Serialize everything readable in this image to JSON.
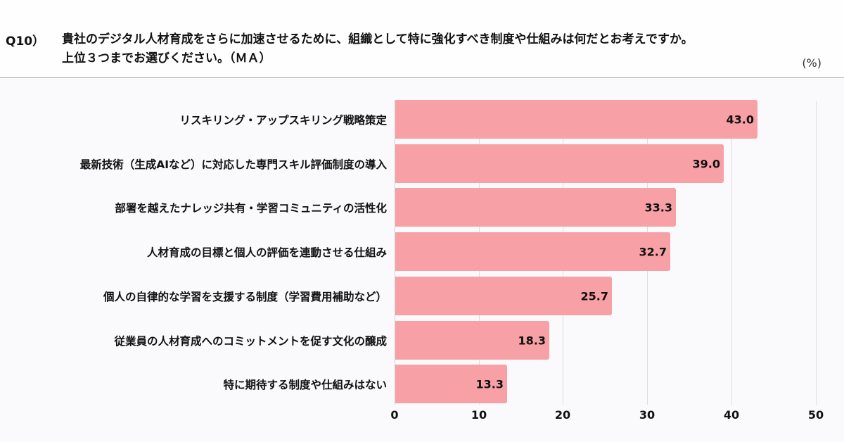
{
  "header": {
    "question_number": "Q10）",
    "question_line1": "貴社のデジタル人材育成をさらに加速させるために、組織として特に強化すべき制度や仕組みは何だとお考えですか。",
    "question_line2": "上位３つまでお選びください。（ＭＡ）",
    "unit": "(%)"
  },
  "colors": {
    "bar": "#f7a0a6",
    "divider": "#a9a9a9",
    "grid": "#dddcdf"
  },
  "chart_data": {
    "type": "bar",
    "orientation": "horizontal",
    "title": "貴社のデジタル人材育成をさらに加速させるために、組織として特に強化すべき制度や仕組みは何だとお考えですか。上位３つまでお選びください。（ＭＡ）",
    "xlabel": "(%)",
    "ylabel": "",
    "xlim": [
      0,
      50
    ],
    "xticks": [
      "0",
      "10",
      "20",
      "30",
      "40",
      "50"
    ],
    "grid": true,
    "legend": null,
    "categories": [
      "リスキリング・アップスキリング戦略策定",
      "最新技術（生成AIなど）に対応した専門スキル評価制度の導入",
      "部署を越えたナレッジ共有・学習コミュニティの活性化",
      "人材育成の目標と個人の評価を連動させる仕組み",
      "個人の自律的な学習を支援する制度（学習費用補助など）",
      "従業員の人材育成へのコミットメントを促す文化の醸成",
      "特に期待する制度や仕組みはない"
    ],
    "values": [
      43.0,
      39.0,
      33.3,
      32.7,
      25.7,
      18.3,
      13.3
    ],
    "value_labels": [
      "43.0",
      "39.0",
      "33.3",
      "32.7",
      "25.7",
      "18.3",
      "13.3"
    ]
  }
}
